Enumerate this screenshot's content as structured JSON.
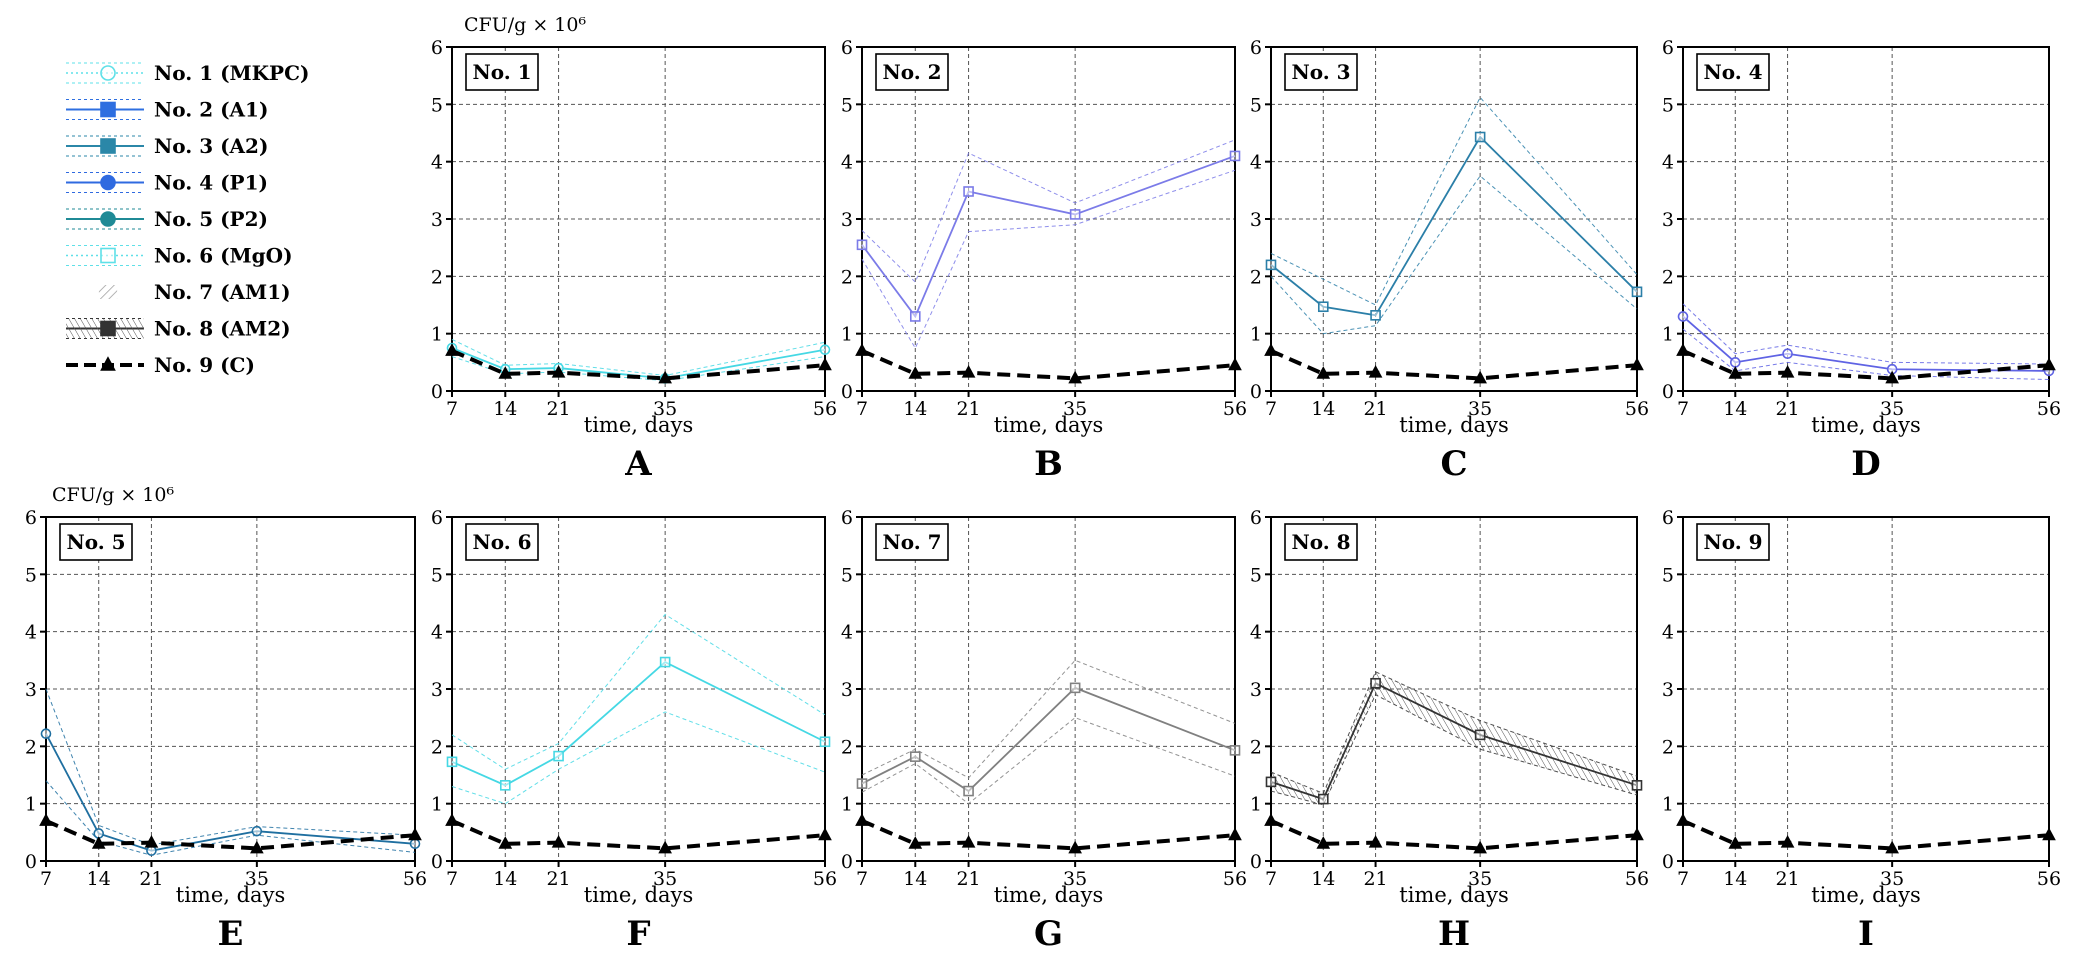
{
  "legend": {
    "items": [
      {
        "label": "No. 1 (MKPC)",
        "color": "#5ee0e8",
        "marker": "circle",
        "dash": "dotted"
      },
      {
        "label": "No. 2 (A1)",
        "color": "#2e6fe0",
        "marker": "square",
        "dash": "solid"
      },
      {
        "label": "No. 3 (A2)",
        "color": "#2b87a8",
        "marker": "square",
        "dash": "solid"
      },
      {
        "label": "No. 4 (P1)",
        "color": "#2f6ae0",
        "marker": "circle",
        "dash": "solid"
      },
      {
        "label": "No. 5 (P2)",
        "color": "#1f8a96",
        "marker": "circle",
        "dash": "solid"
      },
      {
        "label": "No. 6 (MgO)",
        "color": "#5ee0e8",
        "marker": "square",
        "dash": "dotted"
      },
      {
        "label": "No. 7 (AM1)",
        "color": "#b0b0b0",
        "marker": "hatch",
        "dash": "none"
      },
      {
        "label": "No. 8 (AM2)",
        "color": "#333333",
        "marker": "square",
        "dash": "solid"
      },
      {
        "label": "No. 9 (C)",
        "color": "#000000",
        "marker": "triangle",
        "dash": "dashed"
      }
    ]
  },
  "unit_label": "CFU/g  × 10⁶",
  "chart_data": [
    {
      "type": "line",
      "panel": "A",
      "title": "No. 1",
      "xlabel": "time, days",
      "ylabel": "CFU/g  × 10⁶",
      "show_unit": true,
      "x": [
        7,
        14,
        21,
        35,
        56
      ],
      "xticks": [
        "7",
        "14",
        "21",
        "35",
        "56"
      ],
      "ylim": [
        0,
        6
      ],
      "yticks": [
        "0",
        "1",
        "2",
        "3",
        "4",
        "5",
        "6"
      ],
      "series": [
        {
          "name": "No. 1 (MKPC)",
          "color": "#45d8e4",
          "marker": "circle",
          "values": [
            0.75,
            0.38,
            0.4,
            0.22,
            0.72
          ],
          "upper": [
            0.9,
            0.45,
            0.48,
            0.27,
            0.85
          ],
          "lower": [
            0.6,
            0.3,
            0.33,
            0.18,
            0.6
          ]
        },
        {
          "name": "No. 9 (C)",
          "color": "#000000",
          "marker": "triangle",
          "control": true,
          "values": [
            0.7,
            0.3,
            0.32,
            0.22,
            0.45
          ]
        }
      ]
    },
    {
      "type": "line",
      "panel": "B",
      "title": "No. 2",
      "xlabel": "time, days",
      "show_unit": false,
      "x": [
        7,
        14,
        21,
        35,
        56
      ],
      "xticks": [
        "7",
        "14",
        "21",
        "35",
        "56"
      ],
      "ylim": [
        0,
        6
      ],
      "yticks": [
        "0",
        "1",
        "2",
        "3",
        "4",
        "5",
        "6"
      ],
      "series": [
        {
          "name": "No. 2 (A1)",
          "color": "#7b7be8",
          "marker": "square",
          "values": [
            2.55,
            1.3,
            3.48,
            3.08,
            4.1
          ],
          "upper": [
            2.8,
            1.9,
            4.15,
            3.28,
            4.38
          ],
          "lower": [
            2.3,
            0.75,
            2.78,
            2.9,
            3.85
          ]
        },
        {
          "name": "No. 9 (C)",
          "color": "#000000",
          "marker": "triangle",
          "control": true,
          "values": [
            0.7,
            0.3,
            0.32,
            0.22,
            0.45
          ]
        }
      ]
    },
    {
      "type": "line",
      "panel": "C",
      "title": "No. 3",
      "xlabel": "time, days",
      "show_unit": false,
      "x": [
        7,
        14,
        21,
        35,
        56
      ],
      "xticks": [
        "7",
        "14",
        "21",
        "35",
        "56"
      ],
      "ylim": [
        0,
        6
      ],
      "yticks": [
        "0",
        "1",
        "2",
        "3",
        "4",
        "5",
        "6"
      ],
      "series": [
        {
          "name": "No. 3 (A2)",
          "color": "#2b7fa8",
          "marker": "square",
          "values": [
            2.2,
            1.47,
            1.32,
            4.43,
            1.73
          ],
          "upper": [
            2.4,
            1.95,
            1.5,
            5.12,
            2.03
          ],
          "lower": [
            2.0,
            1.0,
            1.14,
            3.75,
            1.43
          ]
        },
        {
          "name": "No. 9 (C)",
          "color": "#000000",
          "marker": "triangle",
          "control": true,
          "values": [
            0.7,
            0.3,
            0.32,
            0.22,
            0.45
          ]
        }
      ]
    },
    {
      "type": "line",
      "panel": "D",
      "title": "No. 4",
      "xlabel": "time, days",
      "show_unit": false,
      "x": [
        7,
        14,
        21,
        35,
        56
      ],
      "xticks": [
        "7",
        "14",
        "21",
        "35",
        "56"
      ],
      "ylim": [
        0,
        6
      ],
      "yticks": [
        "0",
        "1",
        "2",
        "3",
        "4",
        "5",
        "6"
      ],
      "series": [
        {
          "name": "No. 4 (P1)",
          "color": "#5f63e4",
          "marker": "circle",
          "values": [
            1.3,
            0.5,
            0.65,
            0.38,
            0.35
          ],
          "upper": [
            1.52,
            0.65,
            0.8,
            0.5,
            0.47
          ],
          "lower": [
            1.08,
            0.35,
            0.5,
            0.27,
            0.2
          ]
        },
        {
          "name": "No. 9 (C)",
          "color": "#000000",
          "marker": "triangle",
          "control": true,
          "values": [
            0.7,
            0.3,
            0.32,
            0.22,
            0.45
          ]
        }
      ]
    },
    {
      "type": "line",
      "panel": "E",
      "title": "No. 5",
      "xlabel": "time, days",
      "ylabel": "CFU/g  × 10⁶",
      "show_unit": true,
      "x": [
        7,
        14,
        21,
        35,
        56
      ],
      "xticks": [
        "7",
        "14",
        "21",
        "35",
        "56"
      ],
      "ylim": [
        0,
        6
      ],
      "yticks": [
        "0",
        "1",
        "2",
        "3",
        "4",
        "5",
        "6"
      ],
      "series": [
        {
          "name": "No. 5 (P2)",
          "color": "#1f6fa0",
          "marker": "circle",
          "values": [
            2.22,
            0.48,
            0.18,
            0.52,
            0.3
          ],
          "upper": [
            3.0,
            0.62,
            0.28,
            0.6,
            0.45
          ],
          "lower": [
            1.4,
            0.35,
            0.1,
            0.45,
            0.15
          ]
        },
        {
          "name": "No. 9 (C)",
          "color": "#000000",
          "marker": "triangle",
          "control": true,
          "values": [
            0.7,
            0.3,
            0.32,
            0.22,
            0.45
          ]
        }
      ]
    },
    {
      "type": "line",
      "panel": "F",
      "title": "No. 6",
      "xlabel": "time, days",
      "show_unit": false,
      "x": [
        7,
        14,
        21,
        35,
        56
      ],
      "xticks": [
        "7",
        "14",
        "21",
        "35",
        "56"
      ],
      "ylim": [
        0,
        6
      ],
      "yticks": [
        "0",
        "1",
        "2",
        "3",
        "4",
        "5",
        "6"
      ],
      "series": [
        {
          "name": "No. 6 (MgO)",
          "color": "#45d8e4",
          "marker": "square",
          "values": [
            1.73,
            1.32,
            1.83,
            3.47,
            2.08
          ],
          "upper": [
            2.2,
            1.6,
            2.05,
            4.3,
            2.55
          ],
          "lower": [
            1.3,
            1.0,
            1.6,
            2.6,
            1.55
          ]
        },
        {
          "name": "No. 9 (C)",
          "color": "#000000",
          "marker": "triangle",
          "control": true,
          "values": [
            0.7,
            0.3,
            0.32,
            0.22,
            0.45
          ]
        }
      ]
    },
    {
      "type": "line",
      "panel": "G",
      "title": "No. 7",
      "xlabel": "time, days",
      "show_unit": false,
      "x": [
        7,
        14,
        21,
        35,
        56
      ],
      "xticks": [
        "7",
        "14",
        "21",
        "35",
        "56"
      ],
      "ylim": [
        0,
        6
      ],
      "yticks": [
        "0",
        "1",
        "2",
        "3",
        "4",
        "5",
        "6"
      ],
      "series": [
        {
          "name": "No. 7 (AM1)",
          "color": "#808080",
          "marker": "square",
          "values": [
            1.35,
            1.82,
            1.22,
            3.02,
            1.93
          ],
          "upper": [
            1.5,
            1.95,
            1.45,
            3.5,
            2.4
          ],
          "lower": [
            1.2,
            1.7,
            1.0,
            2.5,
            1.48
          ]
        },
        {
          "name": "No. 9 (C)",
          "color": "#000000",
          "marker": "triangle",
          "control": true,
          "values": [
            0.7,
            0.3,
            0.32,
            0.22,
            0.45
          ]
        }
      ]
    },
    {
      "type": "line",
      "panel": "H",
      "title": "No. 8",
      "xlabel": "time, days",
      "show_unit": false,
      "x": [
        7,
        14,
        21,
        35,
        56
      ],
      "xticks": [
        "7",
        "14",
        "21",
        "35",
        "56"
      ],
      "ylim": [
        0,
        6
      ],
      "yticks": [
        "0",
        "1",
        "2",
        "3",
        "4",
        "5",
        "6"
      ],
      "series": [
        {
          "name": "No. 8 (AM2)",
          "color": "#333333",
          "marker": "square",
          "hatch": true,
          "values": [
            1.38,
            1.08,
            3.1,
            2.2,
            1.32
          ],
          "upper": [
            1.55,
            1.18,
            3.3,
            2.45,
            1.48
          ],
          "lower": [
            1.22,
            0.98,
            2.9,
            1.95,
            1.15
          ]
        },
        {
          "name": "No. 9 (C)",
          "color": "#000000",
          "marker": "triangle",
          "control": true,
          "values": [
            0.7,
            0.3,
            0.32,
            0.22,
            0.45
          ]
        }
      ]
    },
    {
      "type": "line",
      "panel": "I",
      "title": "No. 9",
      "xlabel": "time, days",
      "show_unit": false,
      "x": [
        7,
        14,
        21,
        35,
        56
      ],
      "xticks": [
        "7",
        "14",
        "21",
        "35",
        "56"
      ],
      "ylim": [
        0,
        6
      ],
      "yticks": [
        "0",
        "1",
        "2",
        "3",
        "4",
        "5",
        "6"
      ],
      "series": [
        {
          "name": "No. 9 (C)",
          "color": "#000000",
          "marker": "triangle",
          "control": true,
          "values": [
            0.7,
            0.3,
            0.32,
            0.22,
            0.45
          ]
        }
      ]
    }
  ]
}
